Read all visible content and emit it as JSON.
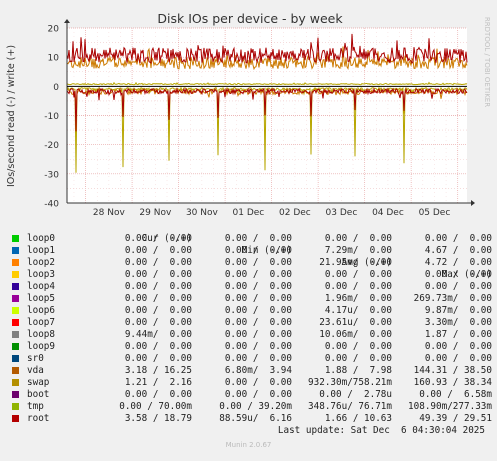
{
  "chart_data": {
    "type": "line",
    "title": "Disk IOs per device - by week",
    "ylabel": "IOs/second read (-) / write (+)",
    "side_label": "RRDTOOL / TOBI OETIKER",
    "ylim": [
      -40,
      20
    ],
    "yticks": [
      20,
      10,
      0,
      -10,
      -20,
      -30,
      -40
    ],
    "xlabels": [
      "28 Nov",
      "29 Nov",
      "30 Nov",
      "01 Dec",
      "02 Dec",
      "03 Dec",
      "04 Dec",
      "05 Dec"
    ],
    "x_start": 27.6,
    "x_end": 6.2,
    "grid": true,
    "series": [
      {
        "name": "vda",
        "color": "#cc7a00",
        "write_avg": 7.98,
        "read_avg": 1.88,
        "write_peak": 38.5,
        "read_peak": 144.31
      },
      {
        "name": "swap",
        "color": "#b8a600",
        "write_avg": 0.758,
        "read_avg": 0.93,
        "write_peak": 38.34,
        "read_peak": 160.93
      },
      {
        "name": "root",
        "color": "#aa0000",
        "write_avg": 10.63,
        "read_avg": 1.66,
        "write_peak": 29.51,
        "read_peak": 49.39
      }
    ]
  },
  "legend": {
    "headers": {
      "cur": "Cur (-/+)",
      "min": "Min (-/+)",
      "avg": "Avg (-/+)",
      "max": "Max (-/+)"
    },
    "rows": [
      {
        "name": "loop0",
        "color": "#00cc00",
        "cur": "0.00 /  0.00",
        "min": "0.00 /  0.00",
        "avg": "0.00 /  0.00",
        "max": "0.00 /  0.00"
      },
      {
        "name": "loop1",
        "color": "#0066b3",
        "cur": "0.00 /  0.00",
        "min": "0.00 /  0.00",
        "avg": "7.29m/  0.00",
        "max": "4.67 /  0.00"
      },
      {
        "name": "loop2",
        "color": "#ff8000",
        "cur": "0.00 /  0.00",
        "min": "0.00 /  0.00",
        "avg": "21.95m/  0.00",
        "max": "4.72 /  0.00"
      },
      {
        "name": "loop3",
        "color": "#ffcc00",
        "cur": "0.00 /  0.00",
        "min": "0.00 /  0.00",
        "avg": "0.00 /  0.00",
        "max": "0.00 /  0.00"
      },
      {
        "name": "loop4",
        "color": "#330099",
        "cur": "0.00 /  0.00",
        "min": "0.00 /  0.00",
        "avg": "0.00 /  0.00",
        "max": "0.00 /  0.00"
      },
      {
        "name": "loop5",
        "color": "#990099",
        "cur": "0.00 /  0.00",
        "min": "0.00 /  0.00",
        "avg": "1.96m/  0.00",
        "max": "269.73m/  0.00"
      },
      {
        "name": "loop6",
        "color": "#ccff00",
        "cur": "0.00 /  0.00",
        "min": "0.00 /  0.00",
        "avg": "4.17u/  0.00",
        "max": "9.87m/  0.00"
      },
      {
        "name": "loop7",
        "color": "#ff0000",
        "cur": "0.00 /  0.00",
        "min": "0.00 /  0.00",
        "avg": "23.61u/  0.00",
        "max": "3.30m/  0.00"
      },
      {
        "name": "loop8",
        "color": "#808080",
        "cur": "9.44m/  0.00",
        "min": "0.00 /  0.00",
        "avg": "10.06m/  0.00",
        "max": "1.87 /  0.00"
      },
      {
        "name": "loop9",
        "color": "#008f00",
        "cur": "0.00 /  0.00",
        "min": "0.00 /  0.00",
        "avg": "0.00 /  0.00",
        "max": "0.00 /  0.00"
      },
      {
        "name": "sr0",
        "color": "#00487d",
        "cur": "0.00 /  0.00",
        "min": "0.00 /  0.00",
        "avg": "0.00 /  0.00",
        "max": "0.00 /  0.00"
      },
      {
        "name": "vda",
        "color": "#b35a00",
        "cur": "3.18 / 16.25",
        "min": "6.80m/  3.94",
        "avg": "1.88 /  7.98",
        "max": "144.31 / 38.50"
      },
      {
        "name": "swap",
        "color": "#b38f00",
        "cur": "1.21 /  2.16",
        "min": "0.00 /  0.00",
        "avg": "932.30m/758.21m",
        "max": "160.93 / 38.34"
      },
      {
        "name": "boot",
        "color": "#6b006b",
        "cur": "0.00 /  0.00",
        "min": "0.00 /  0.00",
        "avg": "0.00 /  2.78u",
        "max": "0.00 /  6.58m"
      },
      {
        "name": "tmp",
        "color": "#8fb300",
        "cur": "0.00 / 70.00m",
        "min": "0.00 / 39.20m",
        "avg": "348.76u/ 76.71m",
        "max": "108.90m/277.33m"
      },
      {
        "name": "root",
        "color": "#b30000",
        "cur": "3.58 / 18.79",
        "min": "88.59u/  6.16",
        "avg": "1.66 / 10.63",
        "max": "49.39 / 29.51"
      }
    ],
    "last_update": "Last update: Sat Dec  6 04:30:04 2025"
  },
  "footer": {
    "version": "Munin 2.0.67"
  }
}
